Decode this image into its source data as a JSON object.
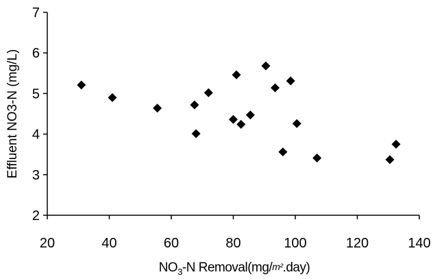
{
  "chart_data": {
    "type": "scatter",
    "title": "",
    "xlabel": {
      "prefix": "NO",
      "sub": "3",
      "suffix": "-N Removal(mg/",
      "unit": "m²",
      "end": ".day)"
    },
    "ylabel": "Effluent NO3-N  (mg/L)",
    "xlim": [
      20,
      140
    ],
    "ylim": [
      2,
      7
    ],
    "xticks": [
      "20",
      "40",
      "60",
      "80",
      "100",
      "120",
      "140"
    ],
    "yticks": [
      "2",
      "3",
      "4",
      "5",
      "6",
      "7"
    ],
    "grid": false,
    "legend": "none",
    "marker": "diamond",
    "marker_color": "#000000",
    "points": [
      {
        "x": 31,
        "y": 5.21
      },
      {
        "x": 41,
        "y": 4.9
      },
      {
        "x": 55.5,
        "y": 4.64
      },
      {
        "x": 67.5,
        "y": 4.72
      },
      {
        "x": 68,
        "y": 4.01
      },
      {
        "x": 72,
        "y": 5.02
      },
      {
        "x": 80,
        "y": 4.36
      },
      {
        "x": 81,
        "y": 5.46
      },
      {
        "x": 82.5,
        "y": 4.24
      },
      {
        "x": 85.5,
        "y": 4.47
      },
      {
        "x": 90.5,
        "y": 5.68
      },
      {
        "x": 93.5,
        "y": 5.14
      },
      {
        "x": 96,
        "y": 3.56
      },
      {
        "x": 98.5,
        "y": 5.31
      },
      {
        "x": 100.5,
        "y": 4.26
      },
      {
        "x": 107,
        "y": 3.41
      },
      {
        "x": 130.5,
        "y": 3.37
      },
      {
        "x": 132.5,
        "y": 3.75
      }
    ]
  }
}
